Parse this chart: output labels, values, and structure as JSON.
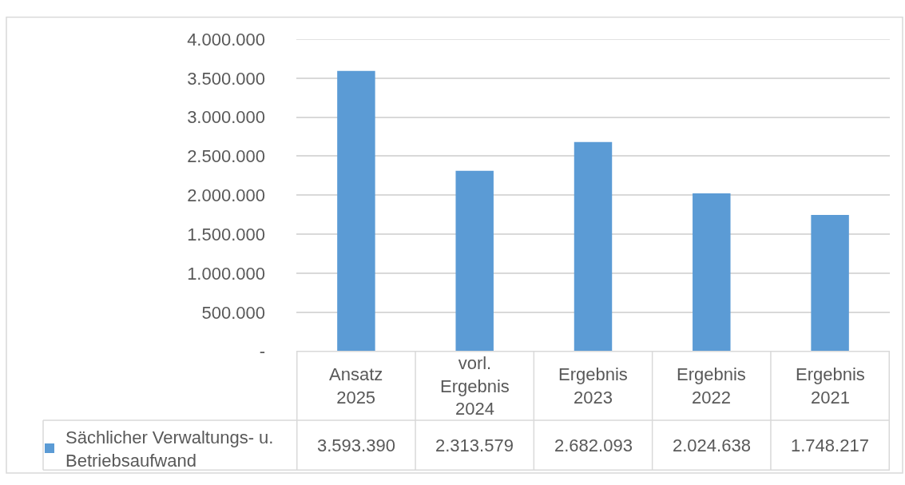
{
  "chart_data": {
    "type": "bar",
    "categories": [
      "Ansatz 2025",
      "vorl. Ergebnis 2024",
      "Ergebnis 2023",
      "Ergebnis 2022",
      "Ergebnis 2021"
    ],
    "series": [
      {
        "name": "Sächlicher Verwaltungs- u. Betriebsaufwand",
        "color": "#5b9bd5",
        "values": [
          3593390,
          2313579,
          2682093,
          2024638,
          1748217
        ],
        "value_labels": [
          "3.593.390",
          "2.313.579",
          "2.682.093",
          "2.024.638",
          "1.748.217"
        ]
      }
    ],
    "ylim": [
      0,
      4000000
    ],
    "yticks": [
      {
        "value": 0,
        "label": "-"
      },
      {
        "value": 500000,
        "label": "500.000"
      },
      {
        "value": 1000000,
        "label": "1.000.000"
      },
      {
        "value": 1500000,
        "label": "1.500.000"
      },
      {
        "value": 2000000,
        "label": "2.000.000"
      },
      {
        "value": 2500000,
        "label": "2.500.000"
      },
      {
        "value": 3000000,
        "label": "3.000.000"
      },
      {
        "value": 3500000,
        "label": "3.500.000"
      },
      {
        "value": 4000000,
        "label": "4.000.000"
      }
    ],
    "grid": "y",
    "legend": "bottom left"
  }
}
